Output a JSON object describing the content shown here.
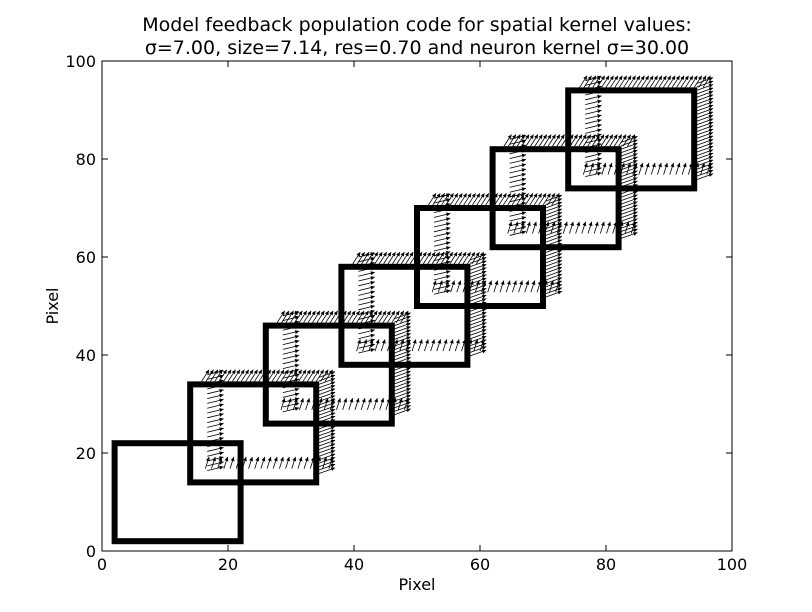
{
  "chart_data": {
    "type": "quiver",
    "title_line1": "Model feedback population code for spatial kernel values:",
    "title_line2": "σ=7.00, size=7.14, res=0.70 and neuron kernel σ=30.00",
    "xlabel": "Pixel",
    "ylabel": "Pixel",
    "xlim": [
      0,
      100
    ],
    "ylim": [
      0,
      100
    ],
    "xticks": [
      "0",
      "20",
      "40",
      "60",
      "80",
      "100"
    ],
    "yticks": [
      "0",
      "20",
      "40",
      "60",
      "80",
      "100"
    ],
    "xtick_values": [
      0,
      20,
      40,
      60,
      80,
      100
    ],
    "ytick_values": [
      0,
      20,
      40,
      60,
      80,
      100
    ],
    "grid": false,
    "squares": [
      {
        "x0": 2,
        "y0": 2,
        "x1": 22,
        "y1": 22
      },
      {
        "x0": 14,
        "y0": 14,
        "x1": 34,
        "y1": 34
      },
      {
        "x0": 26,
        "y0": 26,
        "x1": 46,
        "y1": 46
      },
      {
        "x0": 38,
        "y0": 38,
        "x1": 58,
        "y1": 58
      },
      {
        "x0": 50,
        "y0": 50,
        "x1": 70,
        "y1": 70
      },
      {
        "x0": 62,
        "y0": 62,
        "x1": 82,
        "y1": 82
      },
      {
        "x0": 74,
        "y0": 74,
        "x1": 94,
        "y1": 94
      }
    ],
    "arrow_field": {
      "description_free": true,
      "offset": [
        3,
        3
      ],
      "boxes": [
        {
          "x0": 17,
          "y0": 17,
          "x1": 37,
          "y1": 37
        },
        {
          "x0": 29,
          "y0": 29,
          "x1": 49,
          "y1": 49
        },
        {
          "x0": 41,
          "y0": 41,
          "x1": 61,
          "y1": 61
        },
        {
          "x0": 53,
          "y0": 53,
          "x1": 73,
          "y1": 73
        },
        {
          "x0": 65,
          "y0": 65,
          "x1": 85,
          "y1": 85
        },
        {
          "x0": 77,
          "y0": 77,
          "x1": 97,
          "y1": 97
        }
      ],
      "spacing": 0.7
    }
  }
}
